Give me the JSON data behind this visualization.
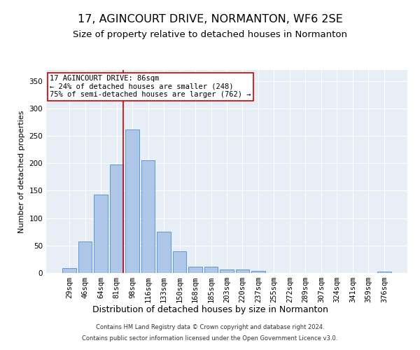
{
  "title": "17, AGINCOURT DRIVE, NORMANTON, WF6 2SE",
  "subtitle": "Size of property relative to detached houses in Normanton",
  "xlabel": "Distribution of detached houses by size in Normanton",
  "ylabel": "Number of detached properties",
  "categories": [
    "29sqm",
    "46sqm",
    "64sqm",
    "81sqm",
    "98sqm",
    "116sqm",
    "133sqm",
    "150sqm",
    "168sqm",
    "185sqm",
    "203sqm",
    "220sqm",
    "237sqm",
    "255sqm",
    "272sqm",
    "289sqm",
    "307sqm",
    "324sqm",
    "341sqm",
    "359sqm",
    "376sqm"
  ],
  "values": [
    9,
    57,
    143,
    198,
    262,
    205,
    75,
    40,
    11,
    12,
    6,
    7,
    4,
    0,
    0,
    0,
    0,
    0,
    0,
    0,
    3
  ],
  "bar_color": "#aec6e8",
  "bar_edge_color": "#5b9bd5",
  "vline_color": "#cc0000",
  "vline_x": 3.43,
  "annotation_text": "17 AGINCOURT DRIVE: 86sqm\n← 24% of detached houses are smaller (248)\n75% of semi-detached houses are larger (762) →",
  "annotation_box_facecolor": "#ffffff",
  "annotation_box_edgecolor": "#cc0000",
  "ylim": [
    0,
    370
  ],
  "yticks": [
    0,
    50,
    100,
    150,
    200,
    250,
    300,
    350
  ],
  "background_color": "#e8eef5",
  "footer_line1": "Contains HM Land Registry data © Crown copyright and database right 2024.",
  "footer_line2": "Contains public sector information licensed under the Open Government Licence v3.0.",
  "title_fontsize": 11.5,
  "subtitle_fontsize": 9.5,
  "xlabel_fontsize": 9,
  "ylabel_fontsize": 8,
  "tick_fontsize": 7.5,
  "annotation_fontsize": 7.5,
  "footer_fontsize": 6
}
